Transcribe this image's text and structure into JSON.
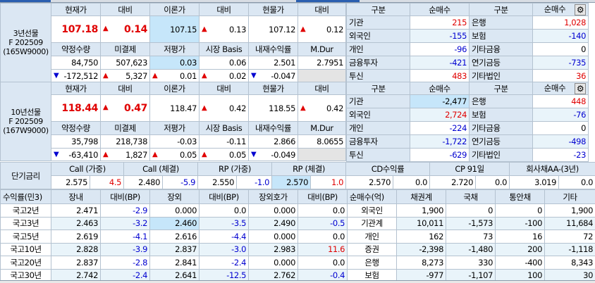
{
  "colors": {
    "up": "#e00000",
    "down": "#0000d0",
    "header_bg": "#dbe7f3",
    "highlight": "#c6e6fa"
  },
  "futures": [
    {
      "label": [
        "3년선물",
        "F 202509",
        "(165W9000)"
      ],
      "headers1": [
        "현재가",
        "대비",
        "이론가",
        "대비",
        "현물가",
        "대비"
      ],
      "row1": [
        {
          "v": "107.18",
          "c": "red",
          "big": true
        },
        {
          "v": "0.14",
          "c": "red",
          "big": true,
          "a": "up"
        },
        {
          "v": "107.15",
          "hl": true
        },
        {
          "v": "0.13",
          "a": "up"
        },
        {
          "v": "107.12"
        },
        {
          "v": "0.12",
          "a": "up"
        }
      ],
      "headers2": [
        "약정수량",
        "미결제",
        "저평가",
        "시장 Basis",
        "내재수익률",
        "M.Dur"
      ],
      "row2": [
        {
          "v": "84,750"
        },
        {
          "v": "507,623"
        },
        {
          "v": "0.03",
          "hl": true
        },
        {
          "v": "0.06"
        },
        {
          "v": "2.501"
        },
        {
          "v": "2.7951"
        }
      ],
      "row3": [
        {
          "v": "-172,512",
          "a": "down"
        },
        {
          "v": "5,327",
          "a": "up"
        },
        {
          "v": "0.01",
          "a": "up"
        },
        {
          "v": "0.02",
          "a": "up"
        },
        {
          "v": "-0.047",
          "a": "down"
        },
        {
          "v": "",
          "gray": true
        }
      ]
    },
    {
      "label": [
        "10년선물",
        "F 202509",
        "(167W9000)"
      ],
      "headers1": [
        "현재가",
        "대비",
        "이론가",
        "대비",
        "현물가",
        "대비"
      ],
      "row1": [
        {
          "v": "118.44",
          "c": "red",
          "big": true
        },
        {
          "v": "0.47",
          "c": "red",
          "big": true,
          "a": "up"
        },
        {
          "v": "118.47"
        },
        {
          "v": "0.42",
          "a": "up"
        },
        {
          "v": "118.55"
        },
        {
          "v": "0.42",
          "a": "up"
        }
      ],
      "headers2": [
        "약정수량",
        "미결제",
        "저평가",
        "시장 Basis",
        "내재수익률",
        "M.Dur"
      ],
      "row2": [
        {
          "v": "35,798"
        },
        {
          "v": "218,738"
        },
        {
          "v": "-0.03"
        },
        {
          "v": "-0.11"
        },
        {
          "v": "2.866"
        },
        {
          "v": "8.0655"
        }
      ],
      "row3": [
        {
          "v": "-63,410",
          "a": "down"
        },
        {
          "v": "1,827",
          "a": "up"
        },
        {
          "v": "0.05",
          "a": "up"
        },
        {
          "v": "0.05",
          "a": "up"
        },
        {
          "v": "-0.049",
          "a": "down"
        },
        {
          "v": "",
          "gray": true
        }
      ]
    }
  ],
  "investors": [
    {
      "headers": [
        "구분",
        "순매수",
        "구분",
        "순매수"
      ],
      "rows": [
        [
          {
            "v": "기관"
          },
          {
            "v": "215",
            "c": "red"
          },
          {
            "v": "은행"
          },
          {
            "v": "1,028",
            "c": "red"
          }
        ],
        [
          {
            "v": "외국인"
          },
          {
            "v": "-155",
            "c": "blue"
          },
          {
            "v": "보험"
          },
          {
            "v": "-140",
            "c": "blue"
          }
        ],
        [
          {
            "v": "개인"
          },
          {
            "v": "-96",
            "c": "blue"
          },
          {
            "v": "기타금융"
          },
          {
            "v": "0"
          }
        ],
        [
          {
            "v": "금융투자"
          },
          {
            "v": "-421",
            "c": "blue"
          },
          {
            "v": "연기금등"
          },
          {
            "v": "-735",
            "c": "blue"
          }
        ],
        [
          {
            "v": "투신"
          },
          {
            "v": "483",
            "c": "red"
          },
          {
            "v": "기타법인"
          },
          {
            "v": "36",
            "c": "red"
          }
        ]
      ]
    },
    {
      "headers": [
        "구분",
        "순매수",
        "구분",
        "순매수"
      ],
      "rows": [
        [
          {
            "v": "기관"
          },
          {
            "v": "-2,477",
            "hl": true
          },
          {
            "v": "은행"
          },
          {
            "v": "448",
            "c": "red"
          }
        ],
        [
          {
            "v": "외국인"
          },
          {
            "v": "2,724",
            "c": "red"
          },
          {
            "v": "보험"
          },
          {
            "v": "-76",
            "c": "blue"
          }
        ],
        [
          {
            "v": "개인"
          },
          {
            "v": "-224",
            "c": "blue"
          },
          {
            "v": "기타금융"
          },
          {
            "v": "0"
          }
        ],
        [
          {
            "v": "금융투자"
          },
          {
            "v": "-1,722",
            "c": "blue"
          },
          {
            "v": "연기금등"
          },
          {
            "v": "-498",
            "c": "blue"
          }
        ],
        [
          {
            "v": "투신"
          },
          {
            "v": "-629",
            "c": "blue"
          },
          {
            "v": "기타법인"
          },
          {
            "v": "-23",
            "c": "blue"
          }
        ]
      ]
    }
  ],
  "short_rates": {
    "label": "단기금리",
    "items": [
      {
        "name": "Call (가중)",
        "rate": "2.575",
        "chg": "4.5",
        "c": "red"
      },
      {
        "name": "Call (체결)",
        "rate": "2.480",
        "chg": "-5.9",
        "c": "blue"
      },
      {
        "name": "RP (가중)",
        "rate": "2.550",
        "chg": "-1.0",
        "c": "blue"
      },
      {
        "name": "RP (체결)",
        "rate": "2.570",
        "chg": "1.0",
        "c": "red",
        "hl": true
      },
      {
        "name": "CD수익률",
        "rate": "2.570",
        "chg": "0.0"
      },
      {
        "name": "CP 91일",
        "rate": "2.720",
        "chg": "0.0"
      },
      {
        "name": "회사채AA-(3년)",
        "rate": "3.019",
        "chg": "0.0"
      }
    ]
  },
  "yields": {
    "headers": [
      "수익률(민3)",
      "장내",
      "대비(BP)",
      "장외",
      "대비(BP)",
      "장외호가",
      "대비(BP)"
    ],
    "rows": [
      [
        {
          "v": "국고2년"
        },
        {
          "v": "2.471"
        },
        {
          "v": "-2.9",
          "c": "blue"
        },
        {
          "v": "0.000"
        },
        {
          "v": "0.0"
        },
        {
          "v": "0.000"
        },
        {
          "v": "0.0"
        }
      ],
      [
        {
          "v": "국고3년"
        },
        {
          "v": "2.463"
        },
        {
          "v": "-3.2",
          "c": "blue"
        },
        {
          "v": "2.460",
          "hl": true
        },
        {
          "v": "-3.5",
          "c": "blue"
        },
        {
          "v": "2.490"
        },
        {
          "v": "-0.5",
          "c": "blue"
        }
      ],
      [
        {
          "v": "국고5년"
        },
        {
          "v": "2.619"
        },
        {
          "v": "-4.1",
          "c": "blue"
        },
        {
          "v": "2.616"
        },
        {
          "v": "-4.4",
          "c": "blue"
        },
        {
          "v": "0.000"
        },
        {
          "v": "0.0"
        }
      ],
      [
        {
          "v": "국고10년"
        },
        {
          "v": "2.828"
        },
        {
          "v": "-3.9",
          "c": "blue"
        },
        {
          "v": "2.837"
        },
        {
          "v": "-3.0",
          "c": "blue"
        },
        {
          "v": "2.983"
        },
        {
          "v": "11.6",
          "c": "red"
        }
      ],
      [
        {
          "v": "국고20년"
        },
        {
          "v": "2.837"
        },
        {
          "v": "-2.8",
          "c": "blue"
        },
        {
          "v": "2.841"
        },
        {
          "v": "-2.4",
          "c": "blue"
        },
        {
          "v": "0.000"
        },
        {
          "v": "0.0"
        }
      ],
      [
        {
          "v": "국고30년"
        },
        {
          "v": "2.742"
        },
        {
          "v": "-2.4",
          "c": "blue"
        },
        {
          "v": "2.641"
        },
        {
          "v": "-12.5",
          "c": "blue"
        },
        {
          "v": "2.762"
        },
        {
          "v": "-0.4",
          "c": "blue"
        }
      ]
    ]
  },
  "netbuy": {
    "headers": [
      "순매수(억)",
      "채권계",
      "국채",
      "통안채",
      "기타"
    ],
    "rows": [
      [
        {
          "v": "외국인"
        },
        {
          "v": "1,900"
        },
        {
          "v": "0"
        },
        {
          "v": "0"
        },
        {
          "v": "1,900"
        }
      ],
      [
        {
          "v": "기관계"
        },
        {
          "v": "10,011"
        },
        {
          "v": "-1,573"
        },
        {
          "v": "-100"
        },
        {
          "v": "11,684"
        }
      ],
      [
        {
          "v": "개인"
        },
        {
          "v": "162"
        },
        {
          "v": "73"
        },
        {
          "v": "16"
        },
        {
          "v": "72"
        }
      ],
      [
        {
          "v": "증권"
        },
        {
          "v": "-2,398"
        },
        {
          "v": "-1,480"
        },
        {
          "v": "200"
        },
        {
          "v": "-1,118"
        }
      ],
      [
        {
          "v": "은행"
        },
        {
          "v": "8,273"
        },
        {
          "v": "330"
        },
        {
          "v": "-400"
        },
        {
          "v": "8,343"
        }
      ],
      [
        {
          "v": "보험"
        },
        {
          "v": "-977"
        },
        {
          "v": "-1,107"
        },
        {
          "v": "100"
        },
        {
          "v": "30"
        }
      ]
    ]
  }
}
